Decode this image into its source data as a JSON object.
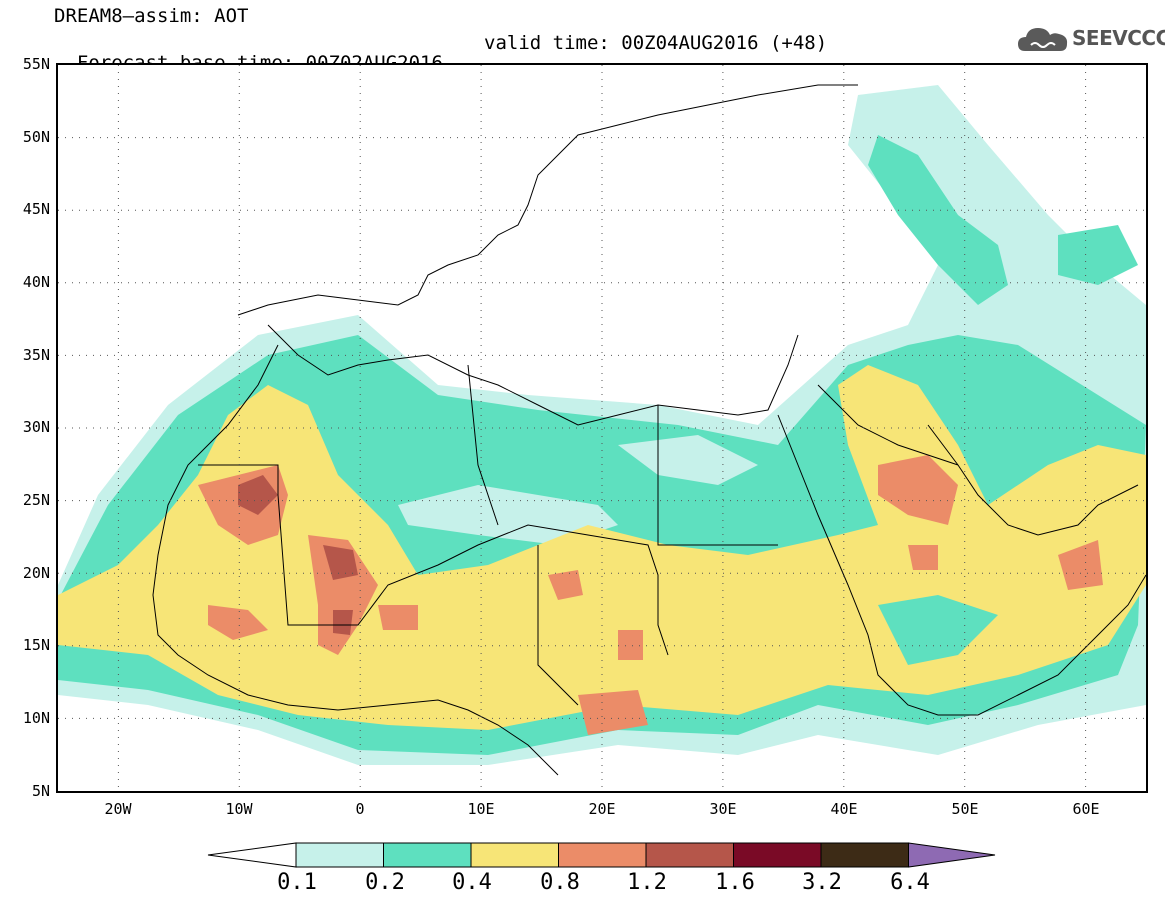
{
  "header": {
    "line1": "DREAM8–assim: AOT",
    "line2": "Forecast base time: 00Z02AUG2016",
    "line2_valid": "valid time: 00Z04AUG2016 (+48)"
  },
  "logo": {
    "text": "SEEVCCC",
    "icon": "cloud-icon"
  },
  "axes": {
    "lat_labels": [
      "55N",
      "50N",
      "45N",
      "40N",
      "35N",
      "30N",
      "25N",
      "20N",
      "15N",
      "10N",
      "5N"
    ],
    "lon_labels": [
      "20W",
      "10W",
      "0",
      "10E",
      "20E",
      "30E",
      "40E",
      "50E",
      "60E"
    ],
    "lat_range": [
      5,
      55
    ],
    "lon_range": [
      -25,
      65
    ],
    "grid": "dotted"
  },
  "colorbar": {
    "levels": [
      "0.1",
      "0.2",
      "0.4",
      "0.8",
      "1.2",
      "1.6",
      "3.2",
      "6.4"
    ],
    "colors": [
      "#ffffff",
      "#c6f1ea",
      "#5ee0bf",
      "#f7e577",
      "#eb8c68",
      "#b5564a",
      "#7a0a26",
      "#3d2b16",
      "#8e6ab3"
    ]
  }
}
